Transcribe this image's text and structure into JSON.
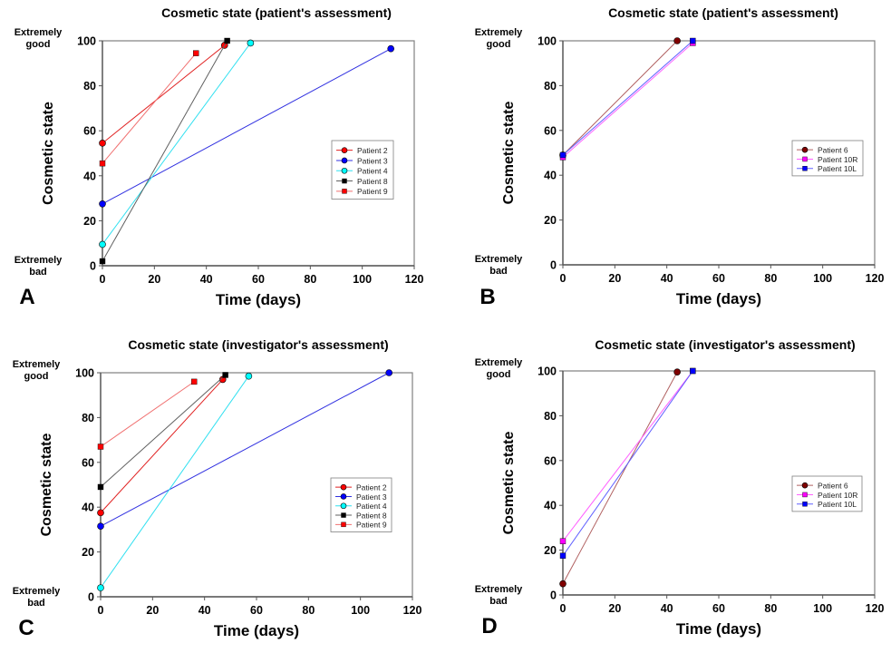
{
  "chart_data": [
    {
      "panel": "A",
      "type": "line",
      "title": "Cosmetic state (patient's assessment)",
      "xlabel": "Time (days)",
      "ylabel": "Cosmetic state",
      "xlim": [
        0,
        120
      ],
      "ylim": [
        0,
        100
      ],
      "xticks": [
        0,
        20,
        40,
        60,
        80,
        100,
        120
      ],
      "yticks": [
        0,
        20,
        40,
        60,
        80,
        100
      ],
      "y_annotations": {
        "top": [
          "Extremely",
          "good"
        ],
        "bottom": [
          "Extremely",
          "bad"
        ]
      },
      "grid": false,
      "legend_position": "right-middle",
      "series": [
        {
          "name": "Patient 2",
          "color": "#ff0000",
          "line_color": "#e02020",
          "marker": "circle",
          "x": [
            0,
            47
          ],
          "y": [
            54.5,
            98
          ]
        },
        {
          "name": "Patient 3",
          "color": "#0000ff",
          "line_color": "#3030e0",
          "marker": "circle",
          "x": [
            0,
            111
          ],
          "y": [
            27.5,
            96.5
          ]
        },
        {
          "name": "Patient 4",
          "color": "#00ffff",
          "line_color": "#30e0f0",
          "marker": "circle",
          "x": [
            0,
            57
          ],
          "y": [
            9.5,
            99
          ]
        },
        {
          "name": "Patient 8",
          "color": "#000000",
          "line_color": "#606060",
          "marker": "square",
          "x": [
            0,
            48
          ],
          "y": [
            2,
            100
          ]
        },
        {
          "name": "Patient 9",
          "color": "#ff0000",
          "line_color": "#f07070",
          "marker": "square",
          "x": [
            0,
            36
          ],
          "y": [
            45.5,
            94.5
          ]
        }
      ]
    },
    {
      "panel": "B",
      "type": "line",
      "title": "Cosmetic state (patient's assessment)",
      "xlabel": "Time (days)",
      "ylabel": "Cosmetic state",
      "xlim": [
        0,
        120
      ],
      "ylim": [
        0,
        100
      ],
      "xticks": [
        0,
        20,
        40,
        60,
        80,
        100,
        120
      ],
      "yticks": [
        0,
        20,
        40,
        60,
        80,
        100
      ],
      "y_annotations": {
        "top": [
          "Extremely",
          "good"
        ],
        "bottom": [
          "Extremely",
          "bad"
        ]
      },
      "grid": false,
      "legend_position": "right-middle",
      "series": [
        {
          "name": "Patient 6",
          "color": "#800000",
          "line_color": "#b06060",
          "marker": "circle",
          "x": [
            0,
            44
          ],
          "y": [
            49,
            100
          ]
        },
        {
          "name": "Patient 10R",
          "color": "#ff00ff",
          "line_color": "#ff60ff",
          "marker": "square",
          "x": [
            0,
            50
          ],
          "y": [
            48,
            99
          ]
        },
        {
          "name": "Patient 10L",
          "color": "#0000ff",
          "line_color": "#6060ff",
          "marker": "square",
          "x": [
            0,
            50
          ],
          "y": [
            49,
            100
          ]
        }
      ]
    },
    {
      "panel": "C",
      "type": "line",
      "title": "Cosmetic state (investigator's assessment)",
      "xlabel": "Time (days)",
      "ylabel": "Cosmetic state",
      "xlim": [
        0,
        120
      ],
      "ylim": [
        0,
        100
      ],
      "xticks": [
        0,
        20,
        40,
        60,
        80,
        100,
        120
      ],
      "yticks": [
        0,
        20,
        40,
        60,
        80,
        100
      ],
      "y_annotations": {
        "top": [
          "Extremely",
          "good"
        ],
        "bottom": [
          "Extremely",
          "bad"
        ]
      },
      "grid": false,
      "legend_position": "right-middle",
      "series": [
        {
          "name": "Patient 2",
          "color": "#ff0000",
          "line_color": "#e02020",
          "marker": "circle",
          "x": [
            0,
            47
          ],
          "y": [
            37.5,
            97
          ]
        },
        {
          "name": "Patient 3",
          "color": "#0000ff",
          "line_color": "#3030e0",
          "marker": "circle",
          "x": [
            0,
            111
          ],
          "y": [
            31.5,
            100
          ]
        },
        {
          "name": "Patient 4",
          "color": "#00ffff",
          "line_color": "#30e0f0",
          "marker": "circle",
          "x": [
            0,
            57
          ],
          "y": [
            4,
            98.5
          ]
        },
        {
          "name": "Patient 8",
          "color": "#000000",
          "line_color": "#606060",
          "marker": "square",
          "x": [
            0,
            48
          ],
          "y": [
            49,
            99
          ]
        },
        {
          "name": "Patient 9",
          "color": "#ff0000",
          "line_color": "#f07070",
          "marker": "square",
          "x": [
            0,
            36
          ],
          "y": [
            67,
            96
          ]
        }
      ]
    },
    {
      "panel": "D",
      "type": "line",
      "title": "Cosmetic state (investigator's assessment)",
      "xlabel": "Time (days)",
      "ylabel": "Cosmetic state",
      "xlim": [
        0,
        120
      ],
      "ylim": [
        0,
        100
      ],
      "xticks": [
        0,
        20,
        40,
        60,
        80,
        100,
        120
      ],
      "yticks": [
        0,
        20,
        40,
        60,
        80,
        100
      ],
      "y_annotations": {
        "top": [
          "Extremely",
          "good"
        ],
        "bottom": [
          "Extremely",
          "bad"
        ]
      },
      "grid": false,
      "legend_position": "right-middle",
      "series": [
        {
          "name": "Patient 6",
          "color": "#800000",
          "line_color": "#b06060",
          "marker": "circle",
          "x": [
            0,
            44
          ],
          "y": [
            5,
            99.5
          ]
        },
        {
          "name": "Patient 10R",
          "color": "#ff00ff",
          "line_color": "#ff60ff",
          "marker": "square",
          "x": [
            0,
            50
          ],
          "y": [
            24,
            100
          ]
        },
        {
          "name": "Patient 10L",
          "color": "#0000ff",
          "line_color": "#6060ff",
          "marker": "square",
          "x": [
            0,
            50
          ],
          "y": [
            17.5,
            100
          ]
        }
      ]
    }
  ]
}
